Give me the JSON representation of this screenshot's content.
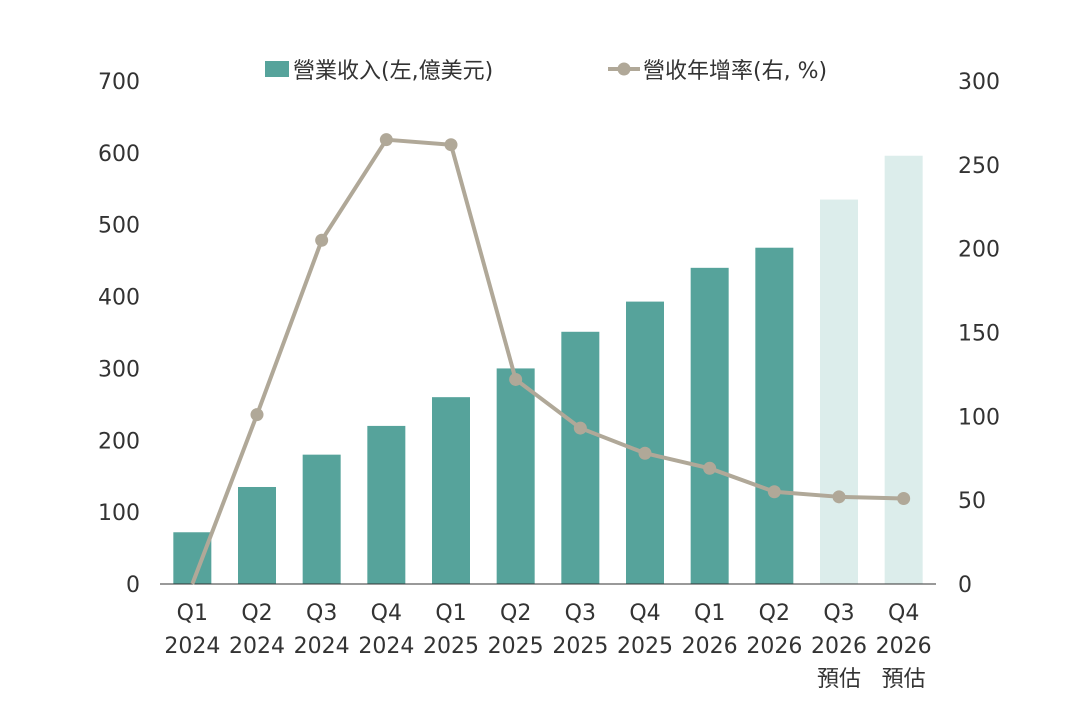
{
  "chart_data": {
    "type": "bar+line",
    "categories": [
      [
        "Q1",
        "2024",
        ""
      ],
      [
        "Q2",
        "2024",
        ""
      ],
      [
        "Q3",
        "2024",
        ""
      ],
      [
        "Q4",
        "2024",
        ""
      ],
      [
        "Q1",
        "2025",
        ""
      ],
      [
        "Q2",
        "2025",
        ""
      ],
      [
        "Q3",
        "2025",
        ""
      ],
      [
        "Q4",
        "2025",
        ""
      ],
      [
        "Q1",
        "2026",
        ""
      ],
      [
        "Q2",
        "2026",
        ""
      ],
      [
        "Q3",
        "2026",
        "預估"
      ],
      [
        "Q4",
        "2026",
        "預估"
      ]
    ],
    "series": [
      {
        "name": "營業收入(左,億美元)",
        "type": "bar",
        "axis": "left",
        "color": "#56a39b",
        "forecast_color": "#dcedeb",
        "values": [
          72,
          135,
          180,
          220,
          260,
          300,
          351,
          393,
          440,
          468,
          535,
          596
        ],
        "forecast": [
          false,
          false,
          false,
          false,
          false,
          false,
          false,
          false,
          false,
          false,
          true,
          true
        ]
      },
      {
        "name": "營收年增率(右, %)",
        "type": "line",
        "axis": "right",
        "color": "#b0a898",
        "values": [
          0,
          101,
          205,
          265,
          262,
          122,
          93,
          78,
          69,
          55,
          52,
          51
        ]
      }
    ],
    "y_left": {
      "min": 0,
      "max": 700,
      "ticks": [
        0,
        100,
        200,
        300,
        400,
        500,
        600,
        700
      ]
    },
    "y_right": {
      "min": 0,
      "max": 300,
      "ticks": [
        0,
        50,
        100,
        150,
        200,
        250,
        300
      ]
    },
    "legend_position": "top-center",
    "grid": false
  }
}
